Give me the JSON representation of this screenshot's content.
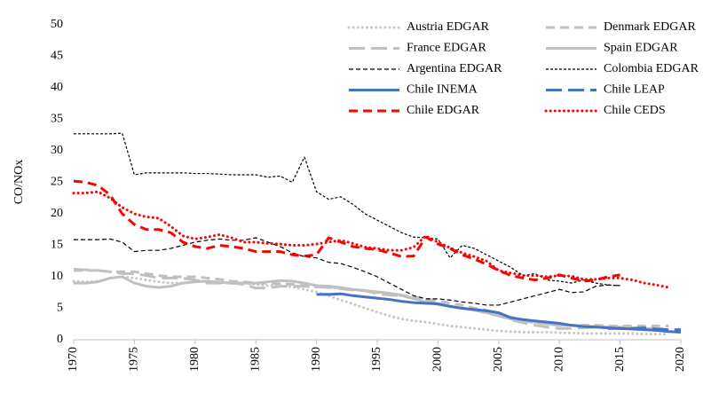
{
  "chart_data": {
    "type": "line",
    "y_label": "CO/NOx",
    "x": [
      1970,
      1971,
      1972,
      1973,
      1974,
      1975,
      1976,
      1977,
      1978,
      1979,
      1980,
      1981,
      1982,
      1983,
      1984,
      1985,
      1986,
      1987,
      1988,
      1989,
      1990,
      1991,
      1992,
      1993,
      1994,
      1995,
      1996,
      1997,
      1998,
      1999,
      2000,
      2001,
      2002,
      2003,
      2004,
      2005,
      2006,
      2007,
      2008,
      2009,
      2010,
      2011,
      2012,
      2013,
      2014,
      2015,
      2016,
      2017,
      2018,
      2019,
      2020
    ],
    "xlim": [
      1970,
      2020
    ],
    "xticks": [
      1970,
      1975,
      1980,
      1985,
      1990,
      1995,
      2000,
      2005,
      2010,
      2015,
      2020
    ],
    "ylim": [
      0,
      50
    ],
    "yticks": [
      0,
      5,
      10,
      15,
      20,
      25,
      30,
      35,
      40,
      45,
      50
    ],
    "legend": "top-right",
    "series": [
      {
        "name": "Austria EDGAR",
        "color": "#c8c8c8",
        "style": "dotted",
        "values": [
          9.3,
          9.2,
          9.3,
          9.8,
          10,
          9.8,
          9.5,
          9.2,
          9,
          9,
          9.2,
          9.3,
          9.2,
          9,
          9,
          8.8,
          8.6,
          8.6,
          8.4,
          8,
          7.6,
          7,
          6.3,
          5.7,
          5,
          4.4,
          3.8,
          3.3,
          3,
          2.8,
          2.5,
          2.2,
          2,
          1.8,
          1.6,
          1.4,
          1.3,
          1.2,
          1.2,
          1.2,
          1.1,
          1.1,
          1,
          1,
          1,
          1,
          1,
          0.9,
          0.9,
          0.9,
          null
        ]
      },
      {
        "name": "Denmark EDGAR",
        "color": "#c0c0c0",
        "style": "dashed",
        "values": [
          11,
          11,
          11,
          10.8,
          10.8,
          10.8,
          10.5,
          10.2,
          10,
          10,
          10,
          9.8,
          9.6,
          9.3,
          9.2,
          9,
          9,
          8.9,
          8.8,
          8.6,
          8.4,
          8.4,
          8.2,
          8,
          7.8,
          7.5,
          7.3,
          7,
          6.8,
          6.5,
          6.2,
          5.8,
          5.5,
          5,
          4.7,
          4,
          3.6,
          3,
          2.7,
          2.5,
          2.3,
          2.3,
          2.3,
          2.3,
          2.2,
          2.2,
          2.2,
          2.2,
          2.2,
          2.2,
          null
        ]
      },
      {
        "name": "France EDGAR",
        "color": "#c0c0c0",
        "style": "long-dash",
        "values": [
          11.2,
          11.1,
          11,
          10.8,
          10.5,
          10.5,
          10.2,
          9.8,
          9.8,
          9.8,
          9.5,
          9,
          9,
          9,
          8.8,
          8.2,
          8.2,
          8.5,
          8.5,
          8.5,
          8.4,
          8.3,
          8.1,
          7.9,
          7.8,
          7.3,
          7.1,
          7,
          6.5,
          6.2,
          5.7,
          5.3,
          5,
          4.8,
          4.2,
          3.8,
          3.2,
          2.7,
          2.3,
          2,
          1.8,
          1.8,
          1.9,
          2,
          1.9,
          1.9,
          1.8,
          1.7,
          1.7,
          1.6,
          null
        ]
      },
      {
        "name": "Spain EDGAR",
        "color": "#c0c0c0",
        "style": "solid",
        "values": [
          9,
          9,
          9.2,
          9.8,
          10,
          9,
          8.5,
          8.3,
          8.5,
          9,
          9.2,
          9.3,
          9.1,
          9,
          9,
          9,
          9.2,
          9.4,
          9.3,
          9,
          8.6,
          8.5,
          8.3,
          8,
          7.8,
          7.6,
          7.4,
          7.1,
          6.6,
          6,
          5.6,
          5.3,
          5,
          4.7,
          4.3,
          3.8,
          3.3,
          3,
          2.8,
          2.5,
          2.3,
          2.3,
          2.2,
          2.1,
          2,
          2,
          1.9,
          1.8,
          1.8,
          1.6,
          null
        ]
      },
      {
        "name": "Argentina EDGAR",
        "color": "#000000",
        "style": "dashed",
        "values": [
          15.9,
          15.9,
          15.9,
          16,
          15.5,
          14,
          14.2,
          14.2,
          14.5,
          15,
          15.5,
          15.8,
          16,
          15.8,
          15.8,
          16.2,
          15.5,
          14.8,
          13.8,
          13.2,
          13,
          12.3,
          12.1,
          11.5,
          10.8,
          10,
          9,
          8,
          7,
          6.5,
          6.5,
          6.3,
          6,
          5.8,
          5.5,
          5.5,
          6,
          6.5,
          7,
          7.5,
          8,
          7.5,
          7.6,
          8.5,
          8.7,
          8.6,
          null,
          null,
          null,
          null,
          null
        ]
      },
      {
        "name": "Colombia EDGAR",
        "color": "#000000",
        "style": "short-dash",
        "values": [
          32.7,
          32.7,
          32.7,
          32.7,
          32.8,
          26.2,
          26.5,
          26.5,
          26.5,
          26.5,
          26.4,
          26.4,
          26.3,
          26.2,
          26.2,
          26.2,
          25.8,
          26,
          25,
          29,
          23.5,
          22.3,
          22.7,
          21.5,
          20,
          19,
          18,
          17,
          16.3,
          16.2,
          16,
          13,
          15,
          14.5,
          13.5,
          12.5,
          11.5,
          10.2,
          10.5,
          9.5,
          9.3,
          9,
          9.5,
          9,
          8.7,
          8.6,
          null,
          null,
          null,
          null,
          null
        ]
      },
      {
        "name": "Chile INEMA",
        "color": "#4472c4",
        "style": "solid",
        "values": [
          null,
          null,
          null,
          null,
          null,
          null,
          null,
          null,
          null,
          null,
          null,
          null,
          null,
          null,
          null,
          null,
          null,
          null,
          null,
          null,
          7.2,
          7.2,
          7.3,
          7,
          6.8,
          6.6,
          6.4,
          6.1,
          5.9,
          5.8,
          5.7,
          5.3,
          5,
          4.8,
          4.6,
          4.3,
          3.5,
          3.2,
          3,
          2.8,
          2.6,
          2.3,
          2.1,
          2,
          1.9,
          1.8,
          1.7,
          1.6,
          1.5,
          1.3,
          1.2
        ]
      },
      {
        "name": "Chile LEAP",
        "color": "#4472c4",
        "style": "long-dash",
        "values": [
          null,
          null,
          null,
          null,
          null,
          null,
          null,
          null,
          null,
          null,
          null,
          null,
          null,
          null,
          null,
          null,
          null,
          null,
          null,
          null,
          null,
          null,
          null,
          null,
          null,
          null,
          null,
          null,
          null,
          null,
          null,
          null,
          null,
          null,
          null,
          null,
          null,
          null,
          null,
          null,
          null,
          null,
          null,
          null,
          1.8,
          1.8,
          1.8,
          1.9,
          1.7,
          1.6,
          1.6
        ]
      },
      {
        "name": "Chile EDGAR",
        "color": "#ff0000",
        "style": "dashed",
        "values": [
          25.2,
          25,
          24.5,
          23,
          20,
          18.3,
          17.5,
          17.5,
          17,
          15.5,
          14.8,
          14.5,
          15,
          14.8,
          14.5,
          14,
          14,
          14,
          13.5,
          13.3,
          13.5,
          16.2,
          15.5,
          14.8,
          14.5,
          14.3,
          13.8,
          13.2,
          13.3,
          16.3,
          15.2,
          14.5,
          13.5,
          12.8,
          12,
          11,
          10.2,
          9.8,
          9.5,
          9.8,
          10.3,
          9.8,
          9.3,
          9.5,
          10,
          10.3,
          null,
          null,
          null,
          null,
          null
        ]
      },
      {
        "name": "Chile CEDS",
        "color": "#ff0000",
        "style": "dotted",
        "values": [
          23.3,
          23.3,
          23.5,
          22.5,
          21,
          20,
          19.5,
          19.3,
          18,
          16.5,
          16,
          16.3,
          16.7,
          16.2,
          15.5,
          15.5,
          15.3,
          15.2,
          15,
          15,
          15.2,
          15.5,
          15.8,
          15.3,
          14.7,
          14.5,
          14.2,
          14.2,
          14.7,
          16.5,
          15.5,
          14.6,
          13.8,
          13.2,
          12.5,
          11,
          10.6,
          10.2,
          10.2,
          10,
          10.2,
          10.1,
          9.6,
          9.6,
          9.8,
          9.8,
          9.5,
          9,
          8.7,
          8.3,
          null
        ]
      }
    ]
  }
}
